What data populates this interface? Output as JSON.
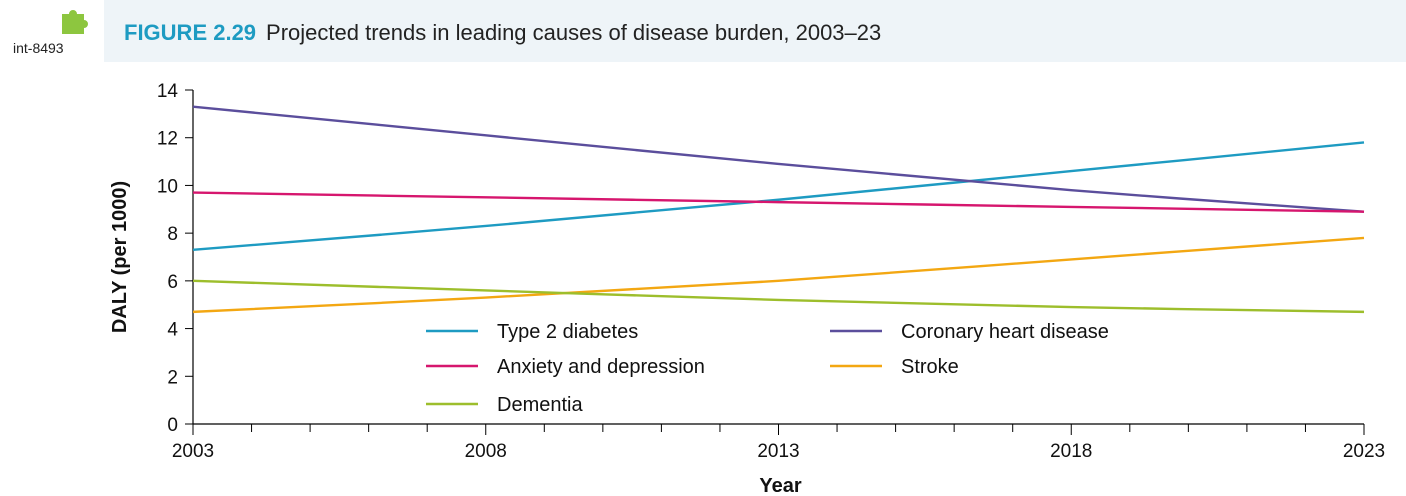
{
  "badge": {
    "label": "int-8493",
    "icon": "puzzle-piece-icon",
    "icon_color": "#8dc63f"
  },
  "figure": {
    "number": "FIGURE 2.29",
    "title": "Projected trends in leading causes of disease burden, 2003–23"
  },
  "chart_data": {
    "type": "line",
    "xlabel": "Year",
    "ylabel": "DALY (per 1000)",
    "xlim": [
      2003,
      2023
    ],
    "ylim": [
      0,
      14
    ],
    "x_ticks": [
      2003,
      2008,
      2013,
      2018,
      2023
    ],
    "y_ticks": [
      0,
      2,
      4,
      6,
      8,
      10,
      12,
      14
    ],
    "grid": false,
    "legend_position": "bottom-center",
    "series": [
      {
        "name": "Type 2 diabetes",
        "color": "#1e9bc2",
        "points": [
          [
            2003,
            7.3
          ],
          [
            2008,
            8.3
          ],
          [
            2013,
            9.4
          ],
          [
            2018,
            10.6
          ],
          [
            2023,
            11.8
          ]
        ]
      },
      {
        "name": "Coronary heart disease",
        "color": "#5b4e9c",
        "points": [
          [
            2003,
            13.3
          ],
          [
            2008,
            12.1
          ],
          [
            2013,
            10.9
          ],
          [
            2018,
            9.8
          ],
          [
            2023,
            8.9
          ]
        ]
      },
      {
        "name": "Anxiety and depression",
        "color": "#d6166e",
        "points": [
          [
            2003,
            9.7
          ],
          [
            2008,
            9.5
          ],
          [
            2013,
            9.3
          ],
          [
            2018,
            9.1
          ],
          [
            2023,
            8.9
          ]
        ]
      },
      {
        "name": "Stroke",
        "color": "#f3a712",
        "points": [
          [
            2003,
            4.7
          ],
          [
            2008,
            5.3
          ],
          [
            2013,
            6.0
          ],
          [
            2018,
            6.9
          ],
          [
            2023,
            7.8
          ]
        ]
      },
      {
        "name": "Dementia",
        "color": "#9dbe2c",
        "points": [
          [
            2003,
            6.0
          ],
          [
            2008,
            5.6
          ],
          [
            2013,
            5.2
          ],
          [
            2018,
            4.9
          ],
          [
            2023,
            4.7
          ]
        ]
      }
    ]
  }
}
